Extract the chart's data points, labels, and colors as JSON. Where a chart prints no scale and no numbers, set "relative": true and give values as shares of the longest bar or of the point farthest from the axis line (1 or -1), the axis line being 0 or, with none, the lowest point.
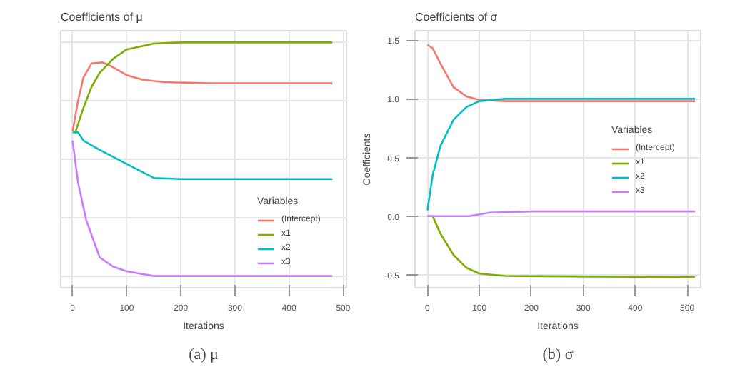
{
  "chart_data": [
    {
      "type": "line",
      "title": "Coefficients of μ",
      "xlabel": "Iterations",
      "legend_title": "Variables",
      "relative": true,
      "xlim": [
        -22,
        506
      ],
      "xticks": [
        0,
        100,
        200,
        300,
        400,
        500
      ],
      "grid": true,
      "legend": "right",
      "annotations": [
        "(a) μ"
      ],
      "series": [
        {
          "name": "(Intercept)",
          "color": "#f8766d",
          "x": [
            0,
            10,
            20,
            35,
            55,
            70,
            100,
            130,
            170,
            250,
            480
          ],
          "values": [
            0.62,
            0.75,
            0.85,
            0.91,
            0.915,
            0.9,
            0.86,
            0.84,
            0.83,
            0.825,
            0.825
          ]
        },
        {
          "name": "x1",
          "color": "#7cae00",
          "x": [
            5,
            20,
            35,
            50,
            75,
            100,
            150,
            200,
            480
          ],
          "values": [
            0.615,
            0.72,
            0.81,
            0.87,
            0.93,
            0.97,
            0.995,
            1,
            1
          ]
        },
        {
          "name": "x2",
          "color": "#00bfc4",
          "x": [
            0,
            10,
            20,
            50,
            100,
            150,
            200,
            480
          ],
          "values": [
            0.615,
            0.615,
            0.58,
            0.54,
            0.48,
            0.42,
            0.415,
            0.415
          ]
        },
        {
          "name": "x3",
          "color": "#c77cff",
          "x": [
            0,
            10,
            25,
            50,
            75,
            100,
            150,
            480
          ],
          "values": [
            0.58,
            0.4,
            0.24,
            0.08,
            0.04,
            0.02,
            0,
            0
          ]
        }
      ]
    },
    {
      "type": "line",
      "title": "Coefficients of σ",
      "xlabel": "Iterations",
      "ylabel": "Coefficients",
      "legend_title": "Variables",
      "xlim": [
        -24,
        526
      ],
      "xticks": [
        0,
        100,
        200,
        300,
        400,
        500
      ],
      "ylim": [
        -0.61,
        1.58
      ],
      "yticks": [
        {
          "value": -0.5,
          "label": "-0.5"
        },
        {
          "value": 0,
          "label": "0.0"
        },
        {
          "value": 0.5,
          "label": "0.5"
        },
        {
          "value": 1,
          "label": "1.0"
        },
        {
          "value": 1.5,
          "label": "1.5"
        }
      ],
      "grid": true,
      "legend": "right",
      "annotations": [
        "(b) σ"
      ],
      "series": [
        {
          "name": "(Intercept)",
          "color": "#f8766d",
          "x": [
            0,
            10,
            25,
            50,
            75,
            100,
            150,
            515
          ],
          "values": [
            1.46,
            1.43,
            1.3,
            1.1,
            1.02,
            0.99,
            0.98,
            0.98
          ]
        },
        {
          "name": "x1",
          "color": "#7cae00",
          "x": [
            0,
            10,
            25,
            50,
            75,
            100,
            150,
            515
          ],
          "values": [
            0,
            0,
            -0.15,
            -0.33,
            -0.44,
            -0.49,
            -0.51,
            -0.52
          ]
        },
        {
          "name": "x2",
          "color": "#00bfc4",
          "x": [
            0,
            10,
            25,
            50,
            75,
            100,
            150,
            515
          ],
          "values": [
            0.05,
            0.35,
            0.6,
            0.82,
            0.93,
            0.98,
            1.0,
            1.0
          ]
        },
        {
          "name": "x3",
          "color": "#c77cff",
          "x": [
            0,
            80,
            120,
            200,
            515
          ],
          "values": [
            0,
            0,
            0.03,
            0.04,
            0.04
          ]
        }
      ]
    }
  ]
}
